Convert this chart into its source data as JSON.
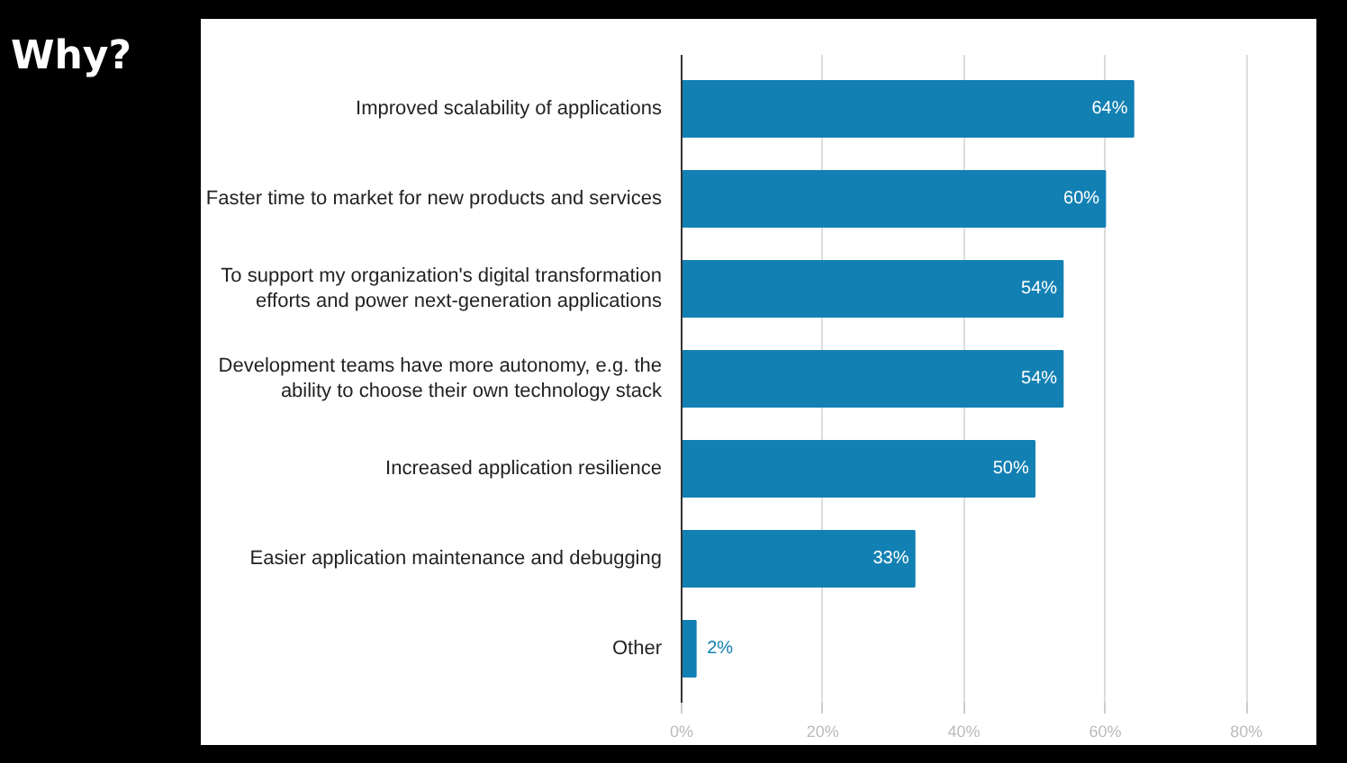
{
  "chart_data": {
    "type": "bar",
    "orientation": "horizontal",
    "title": "Why?",
    "categories": [
      "Improved scalability of applications",
      "Faster time to market for new products and services",
      "To support my organization's digital transformation\nefforts and power next-generation applications",
      "Development teams have more autonomy, e.g. the\nability to choose their own technology stack",
      "Increased application resilience",
      "Easier application maintenance and debugging",
      "Other"
    ],
    "values": [
      64,
      60,
      54,
      54,
      50,
      33,
      2
    ],
    "color": "#1380b3",
    "xlim": [
      0,
      80
    ],
    "xticks": [
      {
        "value": 0,
        "label": "0%"
      },
      {
        "value": 20,
        "label": "20%"
      },
      {
        "value": 40,
        "label": "40%"
      },
      {
        "value": 60,
        "label": "60%"
      },
      {
        "value": 80,
        "label": "80%"
      }
    ],
    "value_labels": [
      "64%",
      "60%",
      "54%",
      "54%",
      "50%",
      "33%",
      "2%"
    ],
    "grid": "x"
  }
}
